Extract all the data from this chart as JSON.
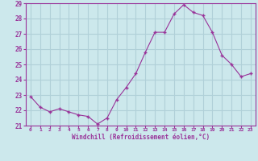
{
  "x": [
    0,
    1,
    2,
    3,
    4,
    5,
    6,
    7,
    8,
    9,
    10,
    11,
    12,
    13,
    14,
    15,
    16,
    17,
    18,
    19,
    20,
    21,
    22,
    23
  ],
  "y": [
    22.9,
    22.2,
    21.9,
    22.1,
    21.9,
    21.7,
    21.6,
    21.1,
    21.5,
    22.7,
    23.5,
    24.4,
    25.8,
    27.1,
    27.1,
    28.3,
    28.9,
    28.4,
    28.2,
    27.1,
    25.6,
    25.0,
    24.2,
    24.4
  ],
  "xlabel": "Windchill (Refroidissement éolien,°C)",
  "ylim": [
    21,
    29
  ],
  "xlim": [
    -0.5,
    23.5
  ],
  "yticks": [
    21,
    22,
    23,
    24,
    25,
    26,
    27,
    28,
    29
  ],
  "xticks": [
    0,
    1,
    2,
    3,
    4,
    5,
    6,
    7,
    8,
    9,
    10,
    11,
    12,
    13,
    14,
    15,
    16,
    17,
    18,
    19,
    20,
    21,
    22,
    23
  ],
  "line_color": "#993399",
  "marker_color": "#993399",
  "bg_color": "#cce8ec",
  "grid_color": "#b0d0d8",
  "axis_color": "#993399",
  "tick_color": "#993399",
  "label_color": "#993399",
  "font_name": "monospace"
}
